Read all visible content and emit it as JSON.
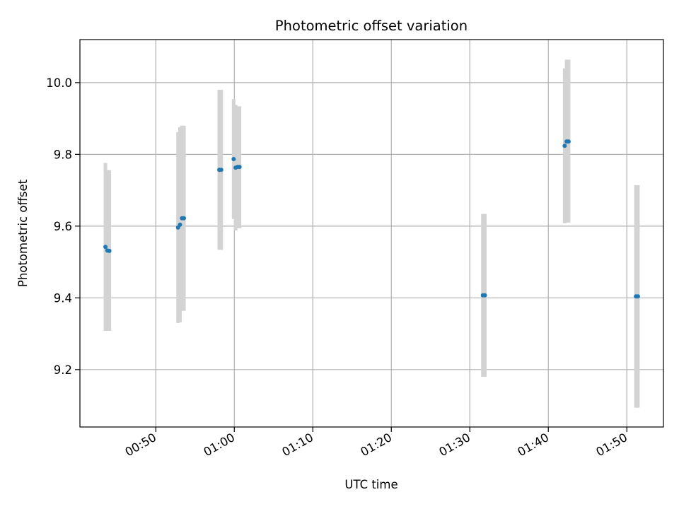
{
  "chart_data": {
    "type": "scatter",
    "title": "Photometric offset variation",
    "xlabel": "UTC time",
    "ylabel": "Photometric offset",
    "x_ticks": [
      "00:50",
      "01:00",
      "01:10",
      "01:20",
      "01:30",
      "01:40",
      "01:50"
    ],
    "y_ticks": [
      "9.2",
      "9.4",
      "9.6",
      "9.8",
      "10.0"
    ],
    "xlim": [
      "00:40:20",
      "01:54:40"
    ],
    "ylim": [
      9.04,
      10.12
    ],
    "grid": true,
    "marker_color": "#1f77b4",
    "errorbar_color": "#d3d3d3",
    "points": [
      {
        "time": "00:43:35",
        "y": 9.542,
        "err_low": 9.308,
        "err_high": 9.776
      },
      {
        "time": "00:43:50",
        "y": 9.532,
        "err_low": 9.308,
        "err_high": 9.756
      },
      {
        "time": "00:44:05",
        "y": 9.531,
        "err_low": 9.308,
        "err_high": 9.756
      },
      {
        "time": "00:52:50",
        "y": 9.596,
        "err_low": 9.33,
        "err_high": 9.862
      },
      {
        "time": "00:53:05",
        "y": 9.604,
        "err_low": 9.332,
        "err_high": 9.876
      },
      {
        "time": "00:53:20",
        "y": 9.622,
        "err_low": 9.364,
        "err_high": 9.88
      },
      {
        "time": "00:53:35",
        "y": 9.622,
        "err_low": 9.364,
        "err_high": 9.88
      },
      {
        "time": "00:58:05",
        "y": 9.757,
        "err_low": 9.534,
        "err_high": 9.98
      },
      {
        "time": "00:58:20",
        "y": 9.757,
        "err_low": 9.534,
        "err_high": 9.98
      },
      {
        "time": "00:59:55",
        "y": 9.787,
        "err_low": 9.62,
        "err_high": 9.954
      },
      {
        "time": "01:00:10",
        "y": 9.763,
        "err_low": 9.588,
        "err_high": 9.938
      },
      {
        "time": "01:00:25",
        "y": 9.765,
        "err_low": 9.594,
        "err_high": 9.934
      },
      {
        "time": "01:00:40",
        "y": 9.765,
        "err_low": 9.594,
        "err_high": 9.934
      },
      {
        "time": "01:31:40",
        "y": 9.407,
        "err_low": 9.18,
        "err_high": 9.634
      },
      {
        "time": "01:31:55",
        "y": 9.407,
        "err_low": 9.18,
        "err_high": 9.634
      },
      {
        "time": "01:42:05",
        "y": 9.824,
        "err_low": 9.608,
        "err_high": 10.04
      },
      {
        "time": "01:42:20",
        "y": 9.836,
        "err_low": 9.61,
        "err_high": 10.064
      },
      {
        "time": "01:42:35",
        "y": 9.836,
        "err_low": 9.61,
        "err_high": 10.064
      },
      {
        "time": "01:51:10",
        "y": 9.404,
        "err_low": 9.094,
        "err_high": 9.714
      },
      {
        "time": "01:51:25",
        "y": 9.404,
        "err_low": 9.094,
        "err_high": 9.714
      }
    ]
  }
}
